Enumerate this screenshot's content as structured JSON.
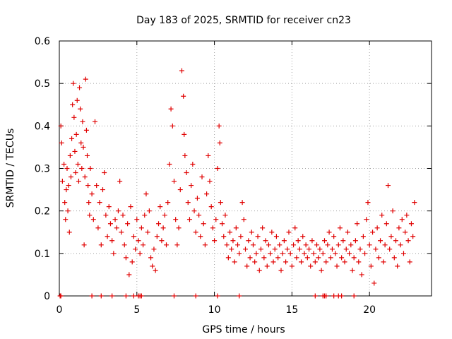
{
  "chart_data": {
    "type": "scatter",
    "title": "Day 183 of 2025, SRMTID for receiver cn23",
    "xlabel": "GPS time / hours",
    "ylabel": "SRMTID / TECUs",
    "xlim": [
      0,
      24
    ],
    "ylim": [
      0,
      0.6
    ],
    "x_ticks": [
      0,
      5,
      10,
      15,
      20
    ],
    "x_tick_labels": [
      "0",
      "5",
      "10",
      "15",
      "20"
    ],
    "y_ticks": [
      0,
      0.1,
      0.2,
      0.3,
      0.4,
      0.5,
      0.6
    ],
    "y_tick_labels": [
      "0",
      "0.1",
      "0.2",
      "0.3",
      "0.4",
      "0.5",
      "0.6"
    ],
    "grid": true,
    "marker": "+",
    "color": "#e00000",
    "series": [
      {
        "name": "SRMTID",
        "points": [
          [
            0.1,
            0.4
          ],
          [
            0.15,
            0.36
          ],
          [
            0.2,
            0.27
          ],
          [
            0.3,
            0.31
          ],
          [
            0.35,
            0.22
          ],
          [
            0.4,
            0.18
          ],
          [
            0.45,
            0.25
          ],
          [
            0.5,
            0.3
          ],
          [
            0.55,
            0.2
          ],
          [
            0.6,
            0.26
          ],
          [
            0.65,
            0.15
          ],
          [
            0.7,
            0.33
          ],
          [
            0.75,
            0.28
          ],
          [
            0.8,
            0.37
          ],
          [
            0.85,
            0.45
          ],
          [
            0.9,
            0.5
          ],
          [
            0.95,
            0.42
          ],
          [
            1.0,
            0.34
          ],
          [
            1.05,
            0.29
          ],
          [
            1.1,
            0.38
          ],
          [
            1.15,
            0.46
          ],
          [
            1.2,
            0.31
          ],
          [
            1.25,
            0.27
          ],
          [
            1.3,
            0.49
          ],
          [
            1.35,
            0.44
          ],
          [
            1.4,
            0.36
          ],
          [
            1.45,
            0.3
          ],
          [
            1.5,
            0.41
          ],
          [
            1.55,
            0.35
          ],
          [
            1.6,
            0.12
          ],
          [
            1.65,
            0.28
          ],
          [
            1.7,
            0.51
          ],
          [
            1.75,
            0.39
          ],
          [
            1.8,
            0.33
          ],
          [
            1.85,
            0.26
          ],
          [
            1.9,
            0.22
          ],
          [
            1.95,
            0.19
          ],
          [
            2.0,
            0.3
          ],
          [
            2.1,
            0.24
          ],
          [
            2.2,
            0.18
          ],
          [
            2.3,
            0.41
          ],
          [
            2.4,
            0.26
          ],
          [
            2.5,
            0.16
          ],
          [
            2.6,
            0.22
          ],
          [
            2.7,
            0.12
          ],
          [
            2.8,
            0.25
          ],
          [
            2.9,
            0.29
          ],
          [
            3.0,
            0.19
          ],
          [
            3.1,
            0.14
          ],
          [
            3.2,
            0.21
          ],
          [
            3.3,
            0.17
          ],
          [
            3.4,
            0.13
          ],
          [
            3.5,
            0.1
          ],
          [
            3.6,
            0.18
          ],
          [
            3.7,
            0.16
          ],
          [
            3.8,
            0.2
          ],
          [
            3.9,
            0.27
          ],
          [
            4.0,
            0.15
          ],
          [
            4.1,
            0.19
          ],
          [
            4.2,
            0.12
          ],
          [
            4.3,
            0.09
          ],
          [
            4.4,
            0.17
          ],
          [
            4.5,
            0.05
          ],
          [
            4.6,
            0.21
          ],
          [
            4.7,
            0.08
          ],
          [
            4.8,
            0.14
          ],
          [
            4.9,
            0.11
          ],
          [
            5.0,
            0.18
          ],
          [
            5.1,
            0.13
          ],
          [
            5.2,
            0.1
          ],
          [
            5.3,
            0.16
          ],
          [
            5.4,
            0.12
          ],
          [
            5.5,
            0.19
          ],
          [
            5.6,
            0.24
          ],
          [
            5.7,
            0.15
          ],
          [
            5.8,
            0.2
          ],
          [
            5.9,
            0.09
          ],
          [
            6.0,
            0.07
          ],
          [
            6.1,
            0.11
          ],
          [
            6.2,
            0.06
          ],
          [
            6.3,
            0.14
          ],
          [
            6.4,
            0.17
          ],
          [
            6.5,
            0.21
          ],
          [
            6.6,
            0.13
          ],
          [
            6.7,
            0.16
          ],
          [
            6.8,
            0.19
          ],
          [
            6.9,
            0.12
          ],
          [
            7.0,
            0.22
          ],
          [
            7.1,
            0.31
          ],
          [
            7.2,
            0.44
          ],
          [
            7.3,
            0.4
          ],
          [
            7.4,
            0.27
          ],
          [
            7.5,
            0.18
          ],
          [
            7.6,
            0.12
          ],
          [
            7.7,
            0.16
          ],
          [
            7.8,
            0.25
          ],
          [
            7.9,
            0.53
          ],
          [
            8.0,
            0.47
          ],
          [
            8.05,
            0.38
          ],
          [
            8.1,
            0.33
          ],
          [
            8.2,
            0.29
          ],
          [
            8.3,
            0.22
          ],
          [
            8.4,
            0.18
          ],
          [
            8.5,
            0.26
          ],
          [
            8.6,
            0.31
          ],
          [
            8.7,
            0.2
          ],
          [
            8.8,
            0.15
          ],
          [
            8.9,
            0.23
          ],
          [
            9.0,
            0.19
          ],
          [
            9.1,
            0.14
          ],
          [
            9.2,
            0.28
          ],
          [
            9.3,
            0.17
          ],
          [
            9.4,
            0.12
          ],
          [
            9.5,
            0.24
          ],
          [
            9.6,
            0.33
          ],
          [
            9.7,
            0.27
          ],
          [
            9.8,
            0.21
          ],
          [
            9.9,
            0.16
          ],
          [
            10.0,
            0.13
          ],
          [
            10.1,
            0.18
          ],
          [
            10.2,
            0.3
          ],
          [
            10.3,
            0.4
          ],
          [
            10.35,
            0.36
          ],
          [
            10.4,
            0.22
          ],
          [
            10.5,
            0.17
          ],
          [
            10.6,
            0.14
          ],
          [
            10.7,
            0.19
          ],
          [
            10.8,
            0.12
          ],
          [
            10.9,
            0.09
          ],
          [
            11.0,
            0.15
          ],
          [
            11.1,
            0.11
          ],
          [
            11.2,
            0.13
          ],
          [
            11.3,
            0.08
          ],
          [
            11.4,
            0.16
          ],
          [
            11.5,
            0.12
          ],
          [
            11.6,
            0.1
          ],
          [
            11.7,
            0.14
          ],
          [
            11.8,
            0.22
          ],
          [
            11.9,
            0.18
          ],
          [
            12.0,
            0.11
          ],
          [
            12.1,
            0.07
          ],
          [
            12.2,
            0.13
          ],
          [
            12.3,
            0.09
          ],
          [
            12.4,
            0.15
          ],
          [
            12.5,
            0.12
          ],
          [
            12.6,
            0.08
          ],
          [
            12.7,
            0.1
          ],
          [
            12.8,
            0.14
          ],
          [
            12.9,
            0.06
          ],
          [
            13.0,
            0.11
          ],
          [
            13.1,
            0.16
          ],
          [
            13.2,
            0.09
          ],
          [
            13.3,
            0.13
          ],
          [
            13.4,
            0.07
          ],
          [
            13.5,
            0.12
          ],
          [
            13.6,
            0.1
          ],
          [
            13.7,
            0.15
          ],
          [
            13.8,
            0.08
          ],
          [
            13.9,
            0.11
          ],
          [
            14.0,
            0.14
          ],
          [
            14.1,
            0.09
          ],
          [
            14.2,
            0.12
          ],
          [
            14.3,
            0.06
          ],
          [
            14.4,
            0.1
          ],
          [
            14.5,
            0.13
          ],
          [
            14.6,
            0.08
          ],
          [
            14.7,
            0.11
          ],
          [
            14.8,
            0.15
          ],
          [
            14.9,
            0.1
          ],
          [
            15.0,
            0.07
          ],
          [
            15.1,
            0.12
          ],
          [
            15.2,
            0.16
          ],
          [
            15.3,
            0.09
          ],
          [
            15.4,
            0.13
          ],
          [
            15.5,
            0.11
          ],
          [
            15.6,
            0.08
          ],
          [
            15.7,
            0.14
          ],
          [
            15.8,
            0.1
          ],
          [
            15.9,
            0.12
          ],
          [
            16.0,
            0.09
          ],
          [
            16.1,
            0.11
          ],
          [
            16.2,
            0.07
          ],
          [
            16.3,
            0.13
          ],
          [
            16.4,
            0.1
          ],
          [
            16.5,
            0.08
          ],
          [
            16.6,
            0.12
          ],
          [
            16.7,
            0.09
          ],
          [
            16.8,
            0.11
          ],
          [
            16.9,
            0.06
          ],
          [
            17.0,
            0.1
          ],
          [
            17.1,
            0.13
          ],
          [
            17.2,
            0.08
          ],
          [
            17.3,
            0.12
          ],
          [
            17.4,
            0.15
          ],
          [
            17.5,
            0.09
          ],
          [
            17.6,
            0.11
          ],
          [
            17.7,
            0.14
          ],
          [
            17.8,
            0.1
          ],
          [
            17.9,
            0.07
          ],
          [
            18.0,
            0.12
          ],
          [
            18.1,
            0.16
          ],
          [
            18.2,
            0.09
          ],
          [
            18.3,
            0.13
          ],
          [
            18.4,
            0.08
          ],
          [
            18.5,
            0.11
          ],
          [
            18.6,
            0.15
          ],
          [
            18.7,
            0.1
          ],
          [
            18.8,
            0.12
          ],
          [
            18.9,
            0.06
          ],
          [
            19.0,
            0.09
          ],
          [
            19.1,
            0.13
          ],
          [
            19.2,
            0.17
          ],
          [
            19.3,
            0.08
          ],
          [
            19.4,
            0.11
          ],
          [
            19.5,
            0.05
          ],
          [
            19.6,
            0.14
          ],
          [
            19.7,
            0.1
          ],
          [
            19.8,
            0.18
          ],
          [
            19.9,
            0.22
          ],
          [
            20.0,
            0.12
          ],
          [
            20.1,
            0.07
          ],
          [
            20.2,
            0.15
          ],
          [
            20.3,
            0.03
          ],
          [
            20.4,
            0.11
          ],
          [
            20.5,
            0.16
          ],
          [
            20.6,
            0.09
          ],
          [
            20.7,
            0.13
          ],
          [
            20.8,
            0.19
          ],
          [
            20.9,
            0.08
          ],
          [
            21.0,
            0.12
          ],
          [
            21.1,
            0.17
          ],
          [
            21.2,
            0.26
          ],
          [
            21.3,
            0.11
          ],
          [
            21.4,
            0.14
          ],
          [
            21.5,
            0.2
          ],
          [
            21.6,
            0.09
          ],
          [
            21.7,
            0.13
          ],
          [
            21.8,
            0.07
          ],
          [
            21.9,
            0.16
          ],
          [
            22.0,
            0.12
          ],
          [
            22.1,
            0.18
          ],
          [
            22.2,
            0.1
          ],
          [
            22.3,
            0.15
          ],
          [
            22.4,
            0.19
          ],
          [
            22.5,
            0.13
          ],
          [
            22.6,
            0.08
          ],
          [
            22.7,
            0.17
          ],
          [
            22.8,
            0.14
          ],
          [
            22.9,
            0.22
          ]
        ]
      },
      {
        "name": "SRMTID-baseline",
        "points": [
          [
            0.05,
            0
          ],
          [
            0.1,
            0
          ],
          [
            2.1,
            0
          ],
          [
            2.7,
            0
          ],
          [
            3.4,
            0
          ],
          [
            4.3,
            0
          ],
          [
            4.8,
            0
          ],
          [
            5.1,
            0
          ],
          [
            5.2,
            0
          ],
          [
            5.3,
            0
          ],
          [
            7.4,
            0
          ],
          [
            8.8,
            0
          ],
          [
            10.2,
            0
          ],
          [
            11.6,
            0
          ],
          [
            16.5,
            0
          ],
          [
            17.0,
            0
          ],
          [
            17.1,
            0
          ],
          [
            17.2,
            0
          ],
          [
            17.7,
            0
          ],
          [
            18.0,
            0
          ],
          [
            18.2,
            0
          ],
          [
            19.0,
            0
          ]
        ]
      }
    ]
  }
}
